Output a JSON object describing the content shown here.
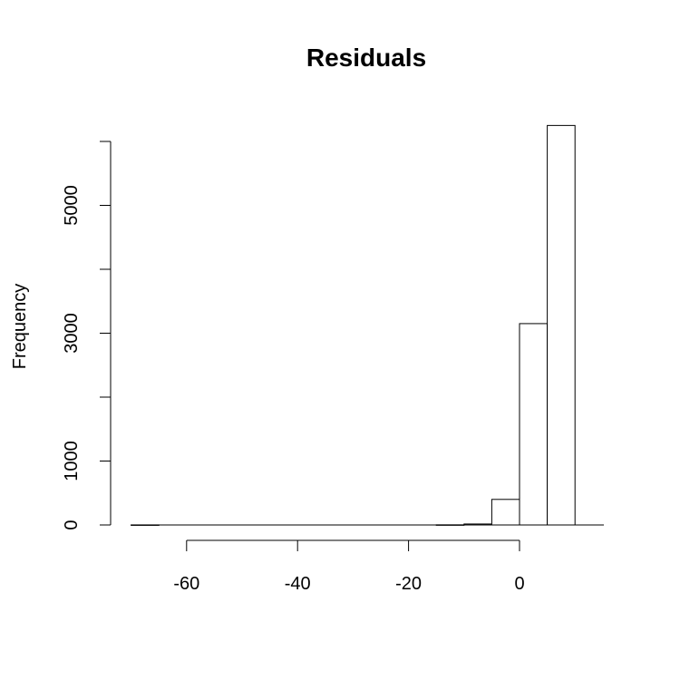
{
  "chart_data": {
    "type": "bar",
    "title": "Residuals",
    "xlabel": "",
    "ylabel": "Frequency",
    "bin_edges": [
      -70,
      -65,
      -60,
      -55,
      -50,
      -45,
      -40,
      -35,
      -30,
      -25,
      -20,
      -15,
      -10,
      -5,
      0,
      5,
      10,
      15
    ],
    "values": [
      1,
      0,
      0,
      0,
      0,
      0,
      0,
      0,
      0,
      0,
      0,
      2,
      15,
      400,
      3150,
      6250,
      0
    ],
    "xlim": [
      -70,
      15
    ],
    "ylim": [
      0,
      6000
    ],
    "x_ticks": [
      -60,
      -40,
      -20,
      0
    ],
    "x_tick_labels": [
      "-60",
      "-40",
      "-20",
      "0"
    ],
    "y_ticks": [
      0,
      1000,
      2000,
      3000,
      4000,
      5000,
      6000
    ],
    "y_tick_labels": [
      "0",
      "1000",
      "",
      "3000",
      "",
      "5000",
      ""
    ],
    "colors": {
      "bar_fill": "#ffffff",
      "bar_stroke": "#000000"
    },
    "grid": false,
    "legend": "none"
  }
}
